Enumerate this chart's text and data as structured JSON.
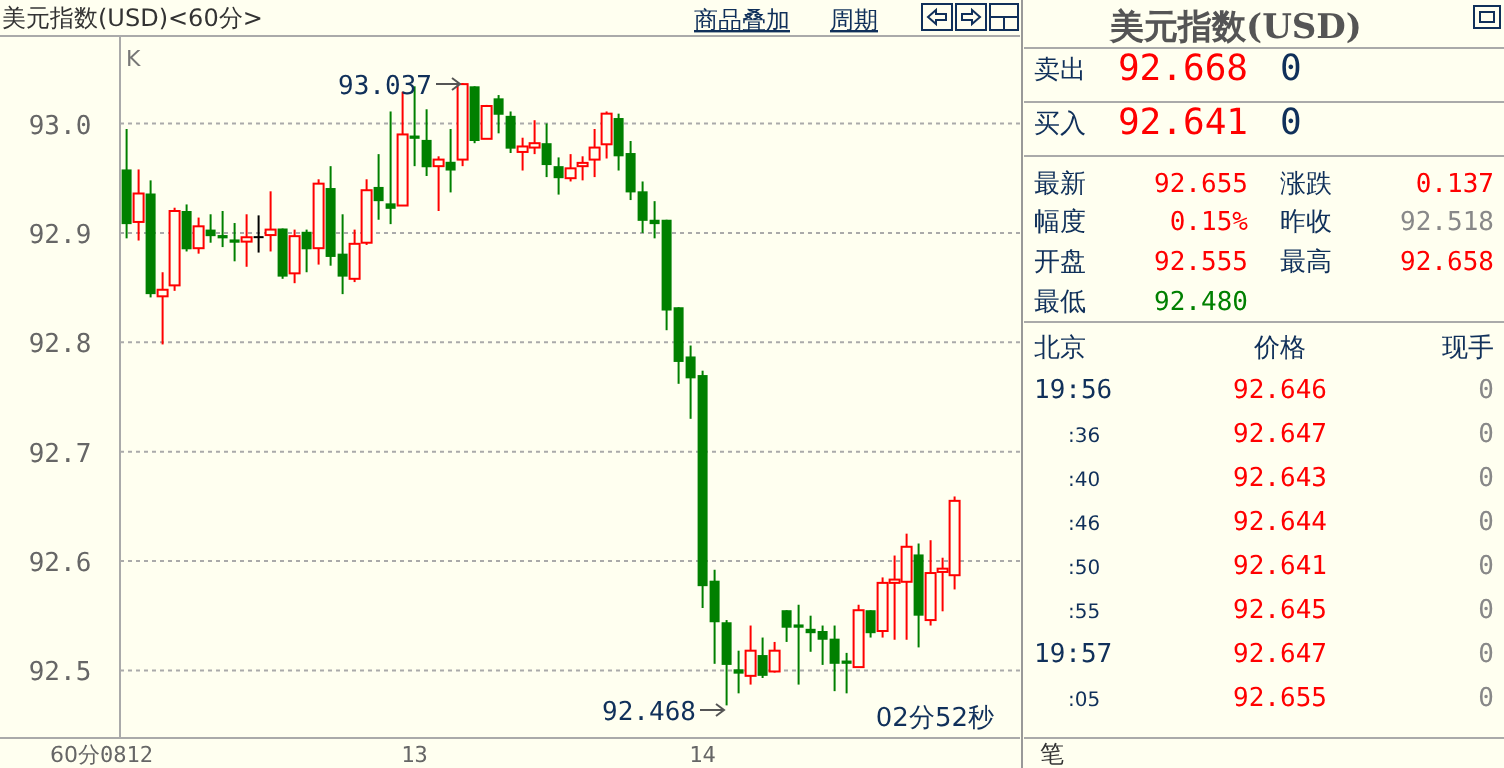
{
  "chart_data": [
    {
      "type": "candlestick",
      "title": "美元指数(USD)<60分>",
      "xlabel": "60分",
      "categories": [
        "0812",
        null,
        null,
        null,
        null,
        null,
        null,
        null,
        null,
        null,
        null,
        null,
        null,
        null,
        null,
        null,
        null,
        null,
        null,
        null,
        null,
        null,
        null,
        null,
        "13",
        null,
        null,
        null,
        null,
        null,
        null,
        null,
        null,
        null,
        null,
        null,
        null,
        null,
        null,
        null,
        null,
        null,
        null,
        null,
        null,
        null,
        null,
        null,
        "14",
        null,
        null,
        null,
        null,
        null,
        null,
        null,
        null,
        null,
        null,
        null,
        null,
        null,
        null,
        null,
        null,
        null,
        null,
        null,
        null,
        null
      ],
      "ohlc": [
        [
          92.958,
          92.995,
          92.895,
          92.908
        ],
        [
          92.91,
          92.958,
          92.893,
          92.936
        ],
        [
          92.936,
          92.948,
          92.841,
          92.844
        ],
        [
          92.842,
          92.864,
          92.798,
          92.848
        ],
        [
          92.852,
          92.923,
          92.847,
          92.92
        ],
        [
          92.92,
          92.926,
          92.883,
          92.885
        ],
        [
          92.886,
          92.914,
          92.881,
          92.906
        ],
        [
          92.903,
          92.917,
          92.891,
          92.897
        ],
        [
          92.898,
          92.92,
          92.887,
          92.895
        ],
        [
          92.894,
          92.909,
          92.874,
          92.891
        ],
        [
          92.892,
          92.917,
          92.869,
          92.896
        ],
        [
          92.897,
          92.916,
          92.882,
          92.897
        ],
        [
          92.898,
          92.938,
          92.883,
          92.903
        ],
        [
          92.904,
          92.904,
          92.858,
          92.86
        ],
        [
          92.863,
          92.903,
          92.854,
          92.897
        ],
        [
          92.901,
          92.903,
          92.864,
          92.885
        ],
        [
          92.886,
          92.949,
          92.871,
          92.945
        ],
        [
          92.941,
          92.961,
          92.87,
          92.878
        ],
        [
          92.881,
          92.917,
          92.844,
          92.86
        ],
        [
          92.858,
          92.903,
          92.855,
          92.89
        ],
        [
          92.891,
          92.949,
          92.889,
          92.939
        ],
        [
          92.942,
          92.972,
          92.912,
          92.929
        ],
        [
          92.927,
          93.011,
          92.908,
          92.922
        ],
        [
          92.925,
          93.029,
          92.925,
          92.99
        ],
        [
          92.989,
          93.034,
          92.961,
          92.986
        ],
        [
          92.985,
          93.013,
          92.952,
          92.96
        ],
        [
          92.961,
          92.97,
          92.92,
          92.967
        ],
        [
          92.965,
          92.995,
          92.937,
          92.957
        ],
        [
          92.967,
          93.037,
          92.961,
          93.036
        ],
        [
          93.034,
          93.034,
          92.982,
          92.984
        ],
        [
          92.986,
          93.017,
          92.986,
          93.016
        ],
        [
          93.023,
          93.026,
          92.991,
          93.008
        ],
        [
          93.007,
          93.011,
          92.973,
          92.977
        ],
        [
          92.974,
          92.987,
          92.957,
          92.979
        ],
        [
          92.978,
          93.003,
          92.972,
          92.982
        ],
        [
          92.982,
          93.0,
          92.951,
          92.962
        ],
        [
          92.961,
          92.969,
          92.935,
          92.95
        ],
        [
          92.95,
          92.972,
          92.947,
          92.959
        ],
        [
          92.961,
          92.97,
          92.948,
          92.964
        ],
        [
          92.967,
          92.995,
          92.951,
          92.978
        ],
        [
          92.981,
          93.011,
          92.968,
          93.009
        ],
        [
          93.005,
          93.009,
          92.957,
          92.97
        ],
        [
          92.973,
          92.984,
          92.93,
          92.937
        ],
        [
          92.938,
          92.947,
          92.9,
          92.911
        ],
        [
          92.912,
          92.929,
          92.895,
          92.908
        ],
        [
          92.912,
          92.912,
          92.811,
          92.829
        ],
        [
          92.832,
          92.832,
          92.762,
          92.782
        ],
        [
          92.787,
          92.797,
          92.73,
          92.767
        ],
        [
          92.77,
          92.774,
          92.557,
          92.577
        ],
        [
          92.582,
          92.592,
          92.506,
          92.544
        ],
        [
          92.544,
          92.546,
          92.468,
          92.505
        ],
        [
          92.501,
          92.518,
          92.479,
          92.497
        ],
        [
          92.495,
          92.541,
          92.487,
          92.518
        ],
        [
          92.514,
          92.53,
          92.493,
          92.495
        ],
        [
          92.499,
          92.526,
          92.498,
          92.518
        ],
        [
          92.555,
          92.555,
          92.526,
          92.539
        ],
        [
          92.542,
          92.56,
          92.487,
          92.539
        ],
        [
          92.538,
          92.55,
          92.517,
          92.534
        ],
        [
          92.536,
          92.541,
          92.505,
          92.528
        ],
        [
          92.529,
          92.541,
          92.481,
          92.506
        ],
        [
          92.509,
          92.516,
          92.479,
          92.506
        ],
        [
          92.503,
          92.56,
          92.503,
          92.555
        ],
        [
          92.555,
          92.555,
          92.53,
          92.534
        ],
        [
          92.536,
          92.585,
          92.53,
          92.58
        ],
        [
          92.58,
          92.605,
          92.528,
          92.583
        ],
        [
          92.581,
          92.625,
          92.528,
          92.613
        ],
        [
          92.606,
          92.616,
          92.521,
          92.55
        ],
        [
          92.546,
          92.619,
          92.541,
          92.589
        ],
        [
          92.59,
          92.603,
          92.554,
          92.593
        ],
        [
          92.587,
          92.659,
          92.574,
          92.655
        ]
      ],
      "colors": [
        "#008000",
        "#ff0000",
        "#008000",
        "#ff0000",
        "#ff0000",
        "#008000",
        "#ff0000",
        "#008000",
        "#008000",
        "#008000",
        "#ff0000",
        "#000000",
        "#ff0000",
        "#008000",
        "#ff0000",
        "#008000",
        "#ff0000",
        "#008000",
        "#008000",
        "#ff0000",
        "#ff0000",
        "#008000",
        "#008000",
        "#ff0000",
        "#008000",
        "#008000",
        "#ff0000",
        "#008000",
        "#ff0000",
        "#008000",
        "#ff0000",
        "#008000",
        "#008000",
        "#ff0000",
        "#ff0000",
        "#008000",
        "#008000",
        "#ff0000",
        "#ff0000",
        "#ff0000",
        "#ff0000",
        "#008000",
        "#008000",
        "#008000",
        "#008000",
        "#008000",
        "#008000",
        "#008000",
        "#008000",
        "#008000",
        "#008000",
        "#008000",
        "#ff0000",
        "#008000",
        "#ff0000",
        "#008000",
        "#008000",
        "#008000",
        "#008000",
        "#008000",
        "#008000",
        "#ff0000",
        "#008000",
        "#ff0000",
        "#ff0000",
        "#ff0000",
        "#008000",
        "#ff0000",
        "#ff0000",
        "#ff0000"
      ],
      "ylim": [
        92.44,
        93.08
      ],
      "yticks": [
        92.5,
        92.6,
        92.7,
        92.8,
        92.9,
        {
          "value": 93,
          "label": "93.0"
        }
      ],
      "grid": "y",
      "annotations": [
        "K",
        "93.037",
        "92.468",
        "02分52秒",
        "商品叠加",
        "周期"
      ]
    },
    {
      "type": "other",
      "title": "美元指数(USD)",
      "annotations": [
        "卖出",
        "92.668",
        "0",
        "买入",
        "92.641",
        "0",
        "最新",
        "92.655",
        "涨跌",
        "0.137",
        "幅度",
        "0.15%",
        "昨收",
        "92.518",
        "开盘",
        "92.555",
        "最高",
        "92.658",
        "最低",
        "92.480",
        "北京",
        "价格",
        "现手",
        "19:56",
        "92.646",
        "0",
        ":36",
        "92.647",
        "0",
        ":40",
        "92.643",
        "0",
        ":46",
        "92.644",
        "0",
        ":50",
        "92.641",
        "0",
        ":55",
        "92.645",
        "0",
        "19:57",
        "92.647",
        "0",
        ":05",
        "92.655",
        "0",
        "笔"
      ]
    }
  ]
}
